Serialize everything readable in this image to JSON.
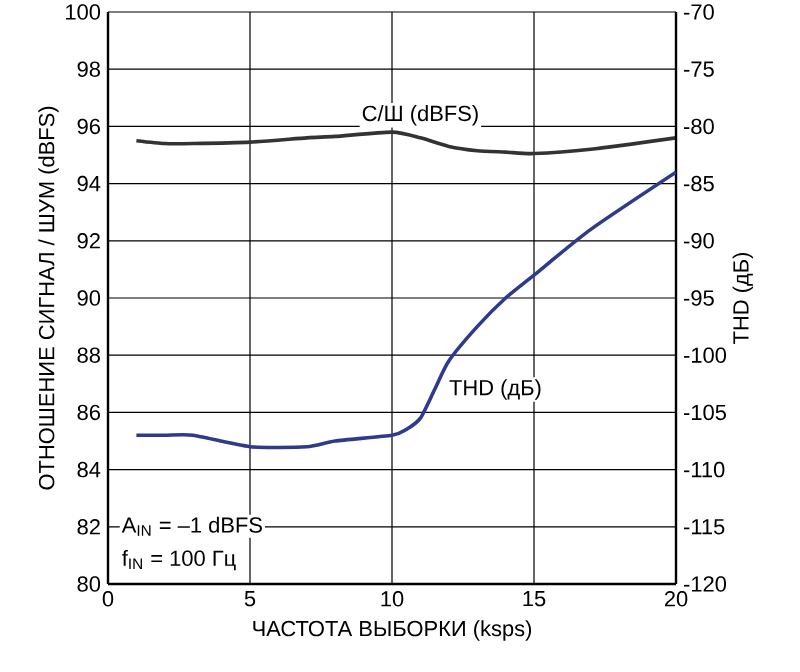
{
  "chart_data": {
    "type": "line",
    "xlabel": "ЧАСТОТА ВЫБОРКИ (ksps)",
    "ylabel": "ОТНОШЕНИЕ СИГНАЛ / ШУМ (dBFS)",
    "y2label": "THD (дБ)",
    "x": [
      1,
      2,
      3,
      5,
      7,
      8,
      10,
      11,
      12,
      13,
      14,
      15,
      17,
      20
    ],
    "series": [
      {
        "name": "С/Ш (dBFS)",
        "color": "#333333",
        "values": [
          95.5,
          95.4,
          95.4,
          95.45,
          95.6,
          95.65,
          95.8,
          95.6,
          95.3,
          95.15,
          95.1,
          95.05,
          95.2,
          95.6
        ]
      },
      {
        "name": "THD (дБ)",
        "color": "#2e3a8c",
        "axis": "y2",
        "x": [
          1,
          2,
          3,
          5,
          7,
          8,
          10,
          10.5,
          11,
          11.5,
          12,
          13,
          14,
          15,
          17,
          20
        ],
        "values": [
          -107,
          -107,
          -107,
          -108,
          -108,
          -107.5,
          -107,
          -106.5,
          -105.5,
          -103,
          -100.5,
          -97.5,
          -95,
          -93,
          -89,
          -84
        ]
      }
    ],
    "xlim": [
      0,
      20
    ],
    "xticks": [
      0,
      5,
      10,
      15,
      20
    ],
    "ylim": [
      80,
      100
    ],
    "yticks": [
      80,
      82,
      84,
      86,
      88,
      90,
      92,
      94,
      96,
      98,
      100
    ],
    "y2lim": [
      -120,
      -70
    ],
    "y2ticks": [
      -120,
      -115,
      -110,
      -105,
      -100,
      -95,
      -90,
      -85,
      -80,
      -75,
      -70
    ],
    "grid": true,
    "marker": "none",
    "line_style": "solid",
    "annotations": [
      "A$_{IN}$ = –1 dBFS",
      "f$_{IN}$ = 100 Гц"
    ]
  }
}
